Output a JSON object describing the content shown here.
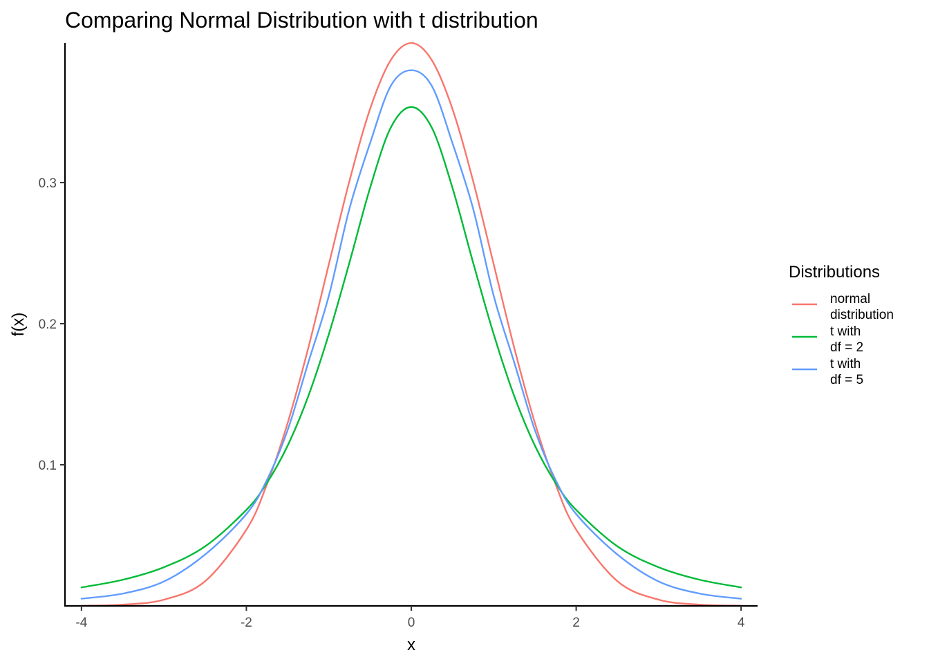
{
  "chart_data": {
    "type": "line",
    "title": "Comparing Normal Distribution with t distribution",
    "xlabel": "x",
    "ylabel": "f(x)",
    "xlim": [
      -4.2,
      4.2
    ],
    "ylim": [
      0.0,
      0.399
    ],
    "x_ticks": [
      -4,
      -2,
      0,
      2,
      4
    ],
    "x_tick_labels": [
      "-4",
      "-2",
      "0",
      "2",
      "4"
    ],
    "y_ticks": [
      0.1,
      0.2,
      0.3
    ],
    "y_tick_labels": [
      "0.1",
      "0.2",
      "0.3"
    ],
    "grid": false,
    "legend": {
      "title": "Distributions",
      "position": "right",
      "entries": [
        {
          "lines": [
            "normal",
            "distribution"
          ],
          "color": "#F8766D"
        },
        {
          "lines": [
            "t with",
            "df = 2"
          ],
          "color": "#00BA38"
        },
        {
          "lines": [
            "t with",
            "df = 5"
          ],
          "color": "#619CFF"
        }
      ]
    },
    "series": [
      {
        "color": "#F8766D",
        "x": [
          -4,
          -3.5,
          -3,
          -2.5,
          -2,
          -1.75,
          -1.5,
          -1.25,
          -1,
          -0.75,
          -0.5,
          -0.25,
          0,
          0.25,
          0.5,
          0.75,
          1,
          1.25,
          1.5,
          1.75,
          2,
          2.5,
          3,
          3.5,
          4
        ],
        "y": [
          0.0001,
          0.0009,
          0.0044,
          0.0175,
          0.054,
          0.0863,
          0.1295,
          0.1826,
          0.242,
          0.3011,
          0.3521,
          0.3867,
          0.3989,
          0.3867,
          0.3521,
          0.3011,
          0.242,
          0.1826,
          0.1295,
          0.0863,
          0.054,
          0.0175,
          0.0044,
          0.0009,
          0.0001
        ]
      },
      {
        "color": "#00BA38",
        "x": [
          -4,
          -3.5,
          -3,
          -2.5,
          -2,
          -1.75,
          -1.5,
          -1.25,
          -1,
          -0.75,
          -0.5,
          -0.25,
          0,
          0.25,
          0.5,
          0.75,
          1,
          1.25,
          1.5,
          1.75,
          2,
          2.5,
          3,
          3.5,
          4
        ],
        "y": [
          0.0131,
          0.0185,
          0.0274,
          0.0422,
          0.068,
          0.0872,
          0.1135,
          0.1485,
          0.1925,
          0.2433,
          0.2962,
          0.3388,
          0.3536,
          0.3388,
          0.2962,
          0.2433,
          0.1925,
          0.1485,
          0.1135,
          0.0872,
          0.068,
          0.0422,
          0.0274,
          0.0185,
          0.0131
        ]
      },
      {
        "color": "#619CFF",
        "x": [
          -4,
          -3.5,
          -3,
          -2.5,
          -2,
          -1.75,
          -1.5,
          -1.25,
          -1,
          -0.75,
          -0.5,
          -0.25,
          0,
          0.25,
          0.5,
          0.75,
          1,
          1.25,
          1.5,
          1.75,
          2,
          2.5,
          3,
          3.5,
          4
        ],
        "y": [
          0.0051,
          0.0087,
          0.0173,
          0.0364,
          0.0651,
          0.0893,
          0.1245,
          0.1723,
          0.2197,
          0.2815,
          0.3279,
          0.3684,
          0.3796,
          0.3684,
          0.3279,
          0.2815,
          0.2197,
          0.1723,
          0.1245,
          0.0893,
          0.0651,
          0.0364,
          0.0173,
          0.0087,
          0.0051
        ]
      }
    ]
  }
}
